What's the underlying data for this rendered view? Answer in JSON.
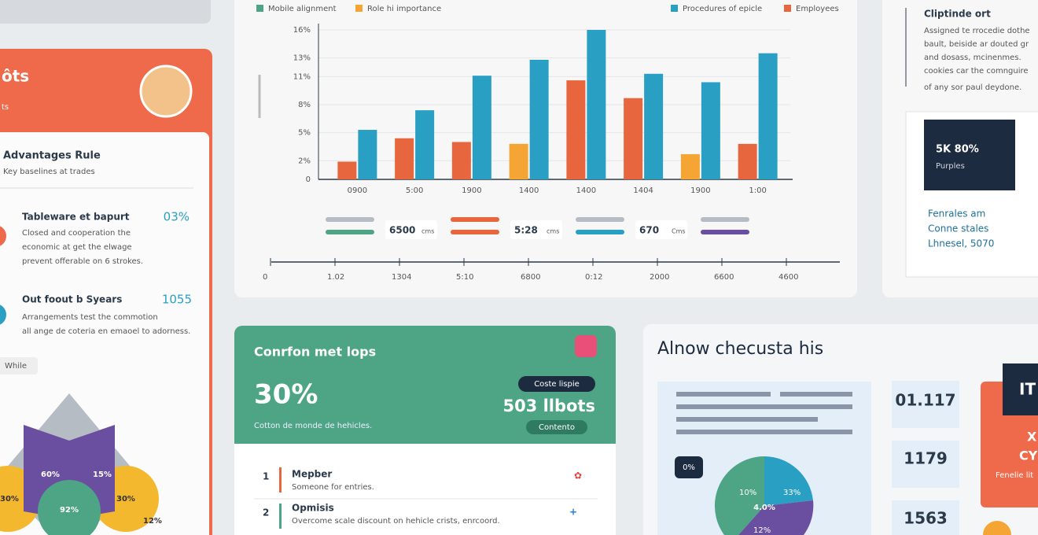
{
  "chart_data": {
    "type": "bar",
    "legend_extra": [
      {
        "name": "Mobile alignment",
        "color": "#4ea585"
      },
      {
        "name": "Employees",
        "color": "#e8663d"
      }
    ],
    "categories": [
      "0900",
      "5:00",
      "1900",
      "1400",
      "1400",
      "1404",
      "1900",
      "1:00"
    ],
    "series": [
      {
        "name": "Role hi importance",
        "color": "#f4a533",
        "colors": [
          "#e8663d",
          "#e8663d",
          "#e8663d",
          "#f4a533",
          "#e8663d",
          "#e8663d",
          "#f4a533",
          "#e8663d"
        ],
        "values": [
          1.9,
          4.4,
          4.0,
          3.8,
          10.6,
          8.7,
          2.7,
          3.8
        ]
      },
      {
        "name": "Procedures of epicle",
        "color": "#2a9fc4",
        "values": [
          5.3,
          7.4,
          11.1,
          12.8,
          16,
          11.3,
          10.4,
          13.5
        ]
      }
    ],
    "ylim": [
      0,
      16
    ],
    "yticks": [
      {
        "value": 0,
        "label": "0"
      },
      {
        "value": 2,
        "label": "2%"
      },
      {
        "value": 5,
        "label": "5%"
      },
      {
        "value": 8,
        "label": "8%"
      },
      {
        "value": 11,
        "label": "11%"
      },
      {
        "value": 13,
        "label": "13%"
      },
      {
        "value": 16,
        "label": "16%"
      }
    ]
  },
  "sliders": [
    {
      "value": "6500",
      "unit": "cms"
    },
    {
      "value": "5:28",
      "unit": "cms"
    },
    {
      "value": "670",
      "unit": "Cms"
    }
  ],
  "timeline": [
    "0",
    "1.02",
    "1304",
    "5:10",
    "6800",
    "0:12",
    "2000",
    "6600",
    "4600"
  ],
  "left_panel": {
    "title": "ôts",
    "subtitle": "ts",
    "heading": "Advantages Rule",
    "subheading": "Key baselines at trades",
    "items": [
      {
        "title": "Tableware et bapurt",
        "value": "03%",
        "lines": [
          "Closed and cooperation the",
          "economic at get the elwage",
          "prevent offerable on 6 strokes."
        ]
      },
      {
        "title": "Out foout b Syears",
        "value": "1055",
        "lines": [
          "Arrangements test the commotion",
          "all ange de coteria en emaoel to adorness."
        ]
      }
    ],
    "button": "While",
    "labels": [
      "60%",
      "15%",
      "30%",
      "30%",
      "92%",
      "12%"
    ]
  },
  "right_panel": {
    "title": "Cliptinde ort",
    "lines": [
      "Assigned te rrocedie dothe",
      "bault, beiside ar douted gr",
      "and dosass, mcinenmes.",
      "cookies car the comnguire",
      "of any sor paul deydone."
    ],
    "card_value": "5K 80%",
    "card_label": "Purples",
    "note": [
      "Fenrales am",
      "Conne stales",
      "Lhnesel, 5070"
    ]
  },
  "green_card": {
    "title": "Conrfon met lops",
    "value": "30%",
    "caption": "Cotton de monde de hehicles.",
    "badge": "Coste lispie",
    "value2": "503 llbots",
    "button": "Contento",
    "list": [
      {
        "n": "1",
        "title": "Mepber",
        "text": "Someone for entries."
      },
      {
        "n": "2",
        "title": "Opmisis",
        "text": "Overcome scale discount on hehicle crists, enrcoord."
      }
    ]
  },
  "bottom_panel": {
    "title": "Alnow checusta his",
    "stats": [
      "01.117",
      "1179",
      "1563"
    ],
    "badge": "0%",
    "pie_labels": [
      "10%",
      "33%",
      "4.0%",
      "12%"
    ],
    "side": [
      "IT",
      "X",
      "CY",
      "Fenelie lit"
    ]
  }
}
